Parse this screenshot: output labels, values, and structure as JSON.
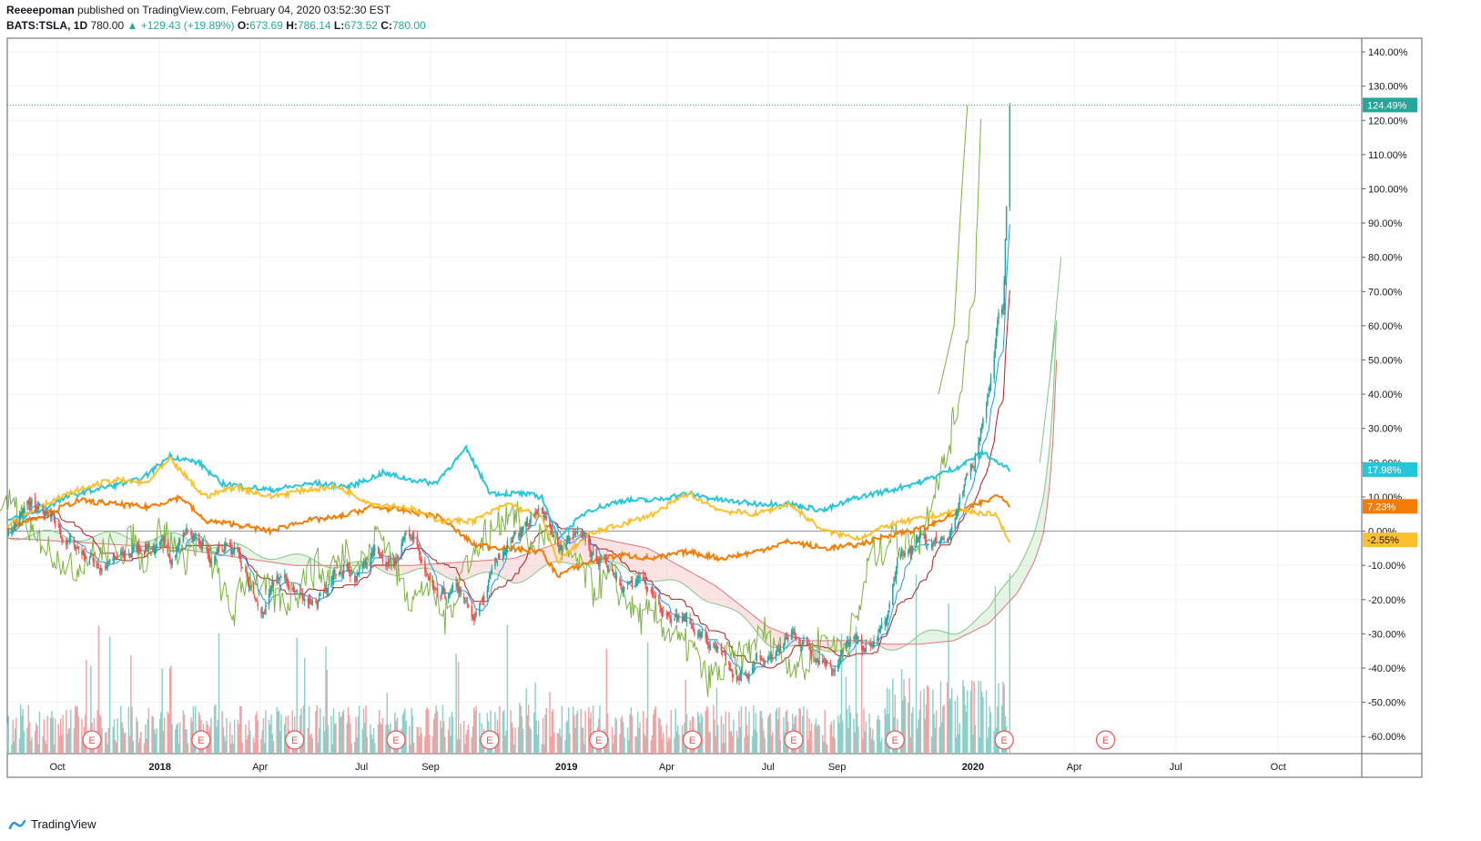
{
  "header": {
    "author": "Reeeepoman",
    "published_text": " published on TradingView.com, February 04, 2020 03:52:30 EST",
    "symbol": "BATS:TSLA, 1D",
    "last": "780.00",
    "change": "▲ +129.43 (+19.89%)",
    "open_label": "O:",
    "open": "673.69",
    "high_label": "H:",
    "high": "786.14",
    "low_label": "L:",
    "low": "673.52",
    "close_label": "C:",
    "close": "780.00"
  },
  "footer": {
    "brand": "TradingView"
  },
  "colors": {
    "up": "#26a69a",
    "down": "#ef5350",
    "cyan": "#26c6da",
    "orange": "#f57c00",
    "yellow": "#fbc02d",
    "conversion": "#2196f3",
    "base": "#b71c1c",
    "lagging": "#7cb342",
    "grid": "#eef2f6"
  },
  "chart_data": {
    "type": "line",
    "y_unit": "%",
    "ylim": [
      -65,
      144
    ],
    "y_ticks": [
      "140.00%",
      "130.00%",
      "120.00%",
      "110.00%",
      "100.00%",
      "90.00%",
      "80.00%",
      "70.00%",
      "60.00%",
      "50.00%",
      "40.00%",
      "30.00%",
      "20.00%",
      "10.00%",
      "0.00%",
      "-10.00%",
      "-20.00%",
      "-30.00%",
      "-40.00%",
      "-50.00%",
      "-60.00%"
    ],
    "y_tick_values": [
      140,
      130,
      120,
      110,
      100,
      90,
      80,
      70,
      60,
      50,
      40,
      30,
      20,
      10,
      0,
      -10,
      -20,
      -30,
      -40,
      -50,
      -60
    ],
    "x_ticks": [
      "Oct",
      "2018",
      "Apr",
      "Jul",
      "Sep",
      "2019",
      "Apr",
      "Jul",
      "Sep",
      "2020",
      "Apr",
      "Jul",
      "Oct"
    ],
    "x_tick_dates": [
      "2017-10-01",
      "2018-01-01",
      "2018-04-01",
      "2018-07-01",
      "2018-09-01",
      "2019-01-01",
      "2019-04-01",
      "2019-07-01",
      "2019-09-01",
      "2020-01-01",
      "2020-04-01",
      "2020-07-01",
      "2020-10-01"
    ],
    "x_range": [
      "2017-08-17",
      "2020-12-15"
    ],
    "earnings_marker_label": "E",
    "earnings_dates": [
      "2017-11-01",
      "2018-02-07",
      "2018-05-02",
      "2018-08-01",
      "2018-10-24",
      "2019-01-30",
      "2019-04-24",
      "2019-07-24",
      "2019-10-23",
      "2020-01-29",
      "2020-04-29"
    ],
    "price_labels": [
      {
        "text": "124.49%",
        "value": 124.49,
        "color": "#26a69a"
      },
      {
        "text": "17.98%",
        "value": 17.98,
        "color": "#26c6da"
      },
      {
        "text": "7.23%",
        "value": 7.23,
        "color": "#f57c00"
      },
      {
        "text": "-2.55%",
        "value": -2.55,
        "color": "#fbc02d"
      }
    ],
    "main_series": {
      "name": "TSLA",
      "anchors": [
        [
          "2017-08-17",
          0
        ],
        [
          "2017-09-08",
          8
        ],
        [
          "2017-09-20",
          4
        ],
        [
          "2017-10-05",
          -2
        ],
        [
          "2017-10-25",
          -6
        ],
        [
          "2017-11-10",
          -10
        ],
        [
          "2017-12-01",
          -8
        ],
        [
          "2017-12-20",
          -3
        ],
        [
          "2018-01-10",
          -7
        ],
        [
          "2018-01-26",
          1
        ],
        [
          "2018-02-15",
          -8
        ],
        [
          "2018-03-02",
          -3
        ],
        [
          "2018-03-20",
          -15
        ],
        [
          "2018-04-02",
          -25
        ],
        [
          "2018-04-18",
          -14
        ],
        [
          "2018-05-08",
          -19
        ],
        [
          "2018-05-30",
          -20
        ],
        [
          "2018-06-15",
          -7
        ],
        [
          "2018-06-26",
          -13
        ],
        [
          "2018-07-15",
          -5
        ],
        [
          "2018-07-30",
          -9
        ],
        [
          "2018-08-08",
          2
        ],
        [
          "2018-08-24",
          -10
        ],
        [
          "2018-09-07",
          -22
        ],
        [
          "2018-09-27",
          -18
        ],
        [
          "2018-10-10",
          -28
        ],
        [
          "2018-10-26",
          -12
        ],
        [
          "2018-11-08",
          -3
        ],
        [
          "2018-11-28",
          3
        ],
        [
          "2018-12-14",
          5
        ],
        [
          "2018-12-26",
          -5
        ],
        [
          "2019-01-10",
          -2
        ],
        [
          "2019-01-25",
          -8
        ],
        [
          "2019-02-08",
          -10
        ],
        [
          "2019-02-27",
          -15
        ],
        [
          "2019-03-15",
          -18
        ],
        [
          "2019-04-05",
          -22
        ],
        [
          "2019-04-26",
          -28
        ],
        [
          "2019-05-14",
          -35
        ],
        [
          "2019-06-04",
          -46
        ],
        [
          "2019-06-14",
          -40
        ],
        [
          "2019-07-01",
          -38
        ],
        [
          "2019-07-24",
          -30
        ],
        [
          "2019-08-09",
          -34
        ],
        [
          "2019-08-28",
          -38
        ],
        [
          "2019-09-13",
          -33
        ],
        [
          "2019-10-01",
          -35
        ],
        [
          "2019-10-15",
          -27
        ],
        [
          "2019-10-25",
          -10
        ],
        [
          "2019-11-12",
          -4
        ],
        [
          "2019-11-28",
          -3
        ],
        [
          "2019-12-10",
          0
        ],
        [
          "2019-12-23",
          10
        ],
        [
          "2020-01-02",
          20
        ],
        [
          "2020-01-10",
          35
        ],
        [
          "2020-01-17",
          45
        ],
        [
          "2020-01-23",
          60
        ],
        [
          "2020-01-28",
          65
        ],
        [
          "2020-01-30",
          85
        ],
        [
          "2020-02-03",
          124.49
        ]
      ]
    },
    "comparison_series": [
      {
        "name": "",
        "color": "#26c6da",
        "anchors": [
          [
            "2017-08-17",
            3
          ],
          [
            "2017-09-15",
            6
          ],
          [
            "2017-10-10",
            10
          ],
          [
            "2017-11-15",
            13
          ],
          [
            "2017-12-15",
            15
          ],
          [
            "2018-01-10",
            22
          ],
          [
            "2018-02-05",
            20
          ],
          [
            "2018-02-25",
            14
          ],
          [
            "2018-03-20",
            13
          ],
          [
            "2018-04-10",
            12
          ],
          [
            "2018-05-20",
            14
          ],
          [
            "2018-06-20",
            13
          ],
          [
            "2018-07-20",
            17
          ],
          [
            "2018-08-15",
            15
          ],
          [
            "2018-09-05",
            14
          ],
          [
            "2018-10-03",
            24
          ],
          [
            "2018-10-25",
            11
          ],
          [
            "2018-11-20",
            11
          ],
          [
            "2018-12-10",
            10
          ],
          [
            "2018-12-24",
            -2
          ],
          [
            "2019-01-20",
            6
          ],
          [
            "2019-02-20",
            9
          ],
          [
            "2019-03-20",
            9
          ],
          [
            "2019-04-20",
            11
          ],
          [
            "2019-05-20",
            9
          ],
          [
            "2019-06-20",
            8
          ],
          [
            "2019-07-20",
            8
          ],
          [
            "2019-08-20",
            6
          ],
          [
            "2019-09-20",
            10
          ],
          [
            "2019-10-20",
            12
          ],
          [
            "2019-11-20",
            15
          ],
          [
            "2019-12-20",
            19
          ],
          [
            "2020-01-10",
            23
          ],
          [
            "2020-01-28",
            19
          ],
          [
            "2020-02-03",
            17.98
          ]
        ]
      },
      {
        "name": "",
        "color": "#f57c00",
        "anchors": [
          [
            "2017-08-17",
            1
          ],
          [
            "2017-09-20",
            5
          ],
          [
            "2017-10-20",
            9
          ],
          [
            "2017-11-20",
            8
          ],
          [
            "2017-12-20",
            7
          ],
          [
            "2018-01-20",
            10
          ],
          [
            "2018-02-10",
            3
          ],
          [
            "2018-03-10",
            2
          ],
          [
            "2018-04-10",
            0
          ],
          [
            "2018-05-10",
            3
          ],
          [
            "2018-06-10",
            4
          ],
          [
            "2018-07-10",
            7
          ],
          [
            "2018-08-10",
            6
          ],
          [
            "2018-09-10",
            4
          ],
          [
            "2018-10-10",
            -4
          ],
          [
            "2018-11-10",
            -5
          ],
          [
            "2018-12-10",
            -6
          ],
          [
            "2018-12-24",
            -13
          ],
          [
            "2019-01-20",
            -9
          ],
          [
            "2019-02-20",
            -7
          ],
          [
            "2019-03-20",
            -8
          ],
          [
            "2019-04-20",
            -6
          ],
          [
            "2019-05-20",
            -8
          ],
          [
            "2019-06-20",
            -6
          ],
          [
            "2019-07-20",
            -3
          ],
          [
            "2019-08-20",
            -5
          ],
          [
            "2019-09-20",
            -4
          ],
          [
            "2019-10-20",
            -1
          ],
          [
            "2019-11-20",
            1
          ],
          [
            "2019-12-20",
            6
          ],
          [
            "2020-01-15",
            9
          ],
          [
            "2020-01-25",
            11
          ],
          [
            "2020-02-03",
            7.23
          ]
        ]
      },
      {
        "name": "",
        "color": "#fbc02d",
        "anchors": [
          [
            "2017-08-17",
            2
          ],
          [
            "2017-09-20",
            8
          ],
          [
            "2017-10-20",
            12
          ],
          [
            "2017-11-20",
            15
          ],
          [
            "2017-12-20",
            14
          ],
          [
            "2018-01-10",
            21
          ],
          [
            "2018-02-10",
            10
          ],
          [
            "2018-03-10",
            13
          ],
          [
            "2018-04-10",
            10
          ],
          [
            "2018-05-10",
            12
          ],
          [
            "2018-06-10",
            13
          ],
          [
            "2018-07-10",
            8
          ],
          [
            "2018-08-10",
            7
          ],
          [
            "2018-09-10",
            3
          ],
          [
            "2018-10-10",
            3
          ],
          [
            "2018-11-10",
            8
          ],
          [
            "2018-12-10",
            4
          ],
          [
            "2018-12-24",
            -9
          ],
          [
            "2019-01-20",
            -1
          ],
          [
            "2019-02-20",
            2
          ],
          [
            "2019-03-20",
            5
          ],
          [
            "2019-04-20",
            11
          ],
          [
            "2019-05-20",
            6
          ],
          [
            "2019-06-20",
            5
          ],
          [
            "2019-07-20",
            8
          ],
          [
            "2019-08-20",
            0
          ],
          [
            "2019-09-20",
            -2
          ],
          [
            "2019-10-20",
            2
          ],
          [
            "2019-11-20",
            4
          ],
          [
            "2019-12-20",
            6
          ],
          [
            "2020-01-20",
            5
          ],
          [
            "2020-02-03",
            -2.55
          ]
        ]
      }
    ],
    "ichimoku": {
      "conversion_color": "#2196f3",
      "base_color": "#b71c1c",
      "lagging_color": "#7cb342",
      "span_a_color": "#a5d6a7",
      "span_b_color": "#ef9a9a",
      "span_a": [
        [
          "2017-08-17",
          -1
        ],
        [
          "2018-01-15",
          -2
        ],
        [
          "2018-05-01",
          -8
        ],
        [
          "2018-08-15",
          -12
        ],
        [
          "2018-11-15",
          -14
        ],
        [
          "2019-01-15",
          -8
        ],
        [
          "2019-03-15",
          -13
        ],
        [
          "2019-05-15",
          -20
        ],
        [
          "2019-07-01",
          -32
        ],
        [
          "2019-08-01",
          -35
        ],
        [
          "2019-09-15",
          -33
        ],
        [
          "2019-10-15",
          -34
        ],
        [
          "2019-11-15",
          -31
        ],
        [
          "2019-12-15",
          -29
        ],
        [
          "2020-01-15",
          -24
        ],
        [
          "2020-02-10",
          -10
        ],
        [
          "2020-02-25",
          0
        ],
        [
          "2020-03-05",
          10
        ],
        [
          "2020-03-12",
          30
        ],
        [
          "2020-03-16",
          60
        ]
      ],
      "span_b": [
        [
          "2017-08-17",
          -2
        ],
        [
          "2018-01-15",
          -5
        ],
        [
          "2018-05-01",
          -10
        ],
        [
          "2018-08-15",
          -10
        ],
        [
          "2018-11-15",
          -8
        ],
        [
          "2019-01-15",
          -1
        ],
        [
          "2019-03-15",
          -5
        ],
        [
          "2019-05-15",
          -16
        ],
        [
          "2019-07-01",
          -28
        ],
        [
          "2019-08-01",
          -32
        ],
        [
          "2019-09-15",
          -32
        ],
        [
          "2019-10-15",
          -33
        ],
        [
          "2019-11-15",
          -33
        ],
        [
          "2019-12-15",
          -32
        ],
        [
          "2020-01-15",
          -27
        ],
        [
          "2020-02-10",
          -18
        ],
        [
          "2020-02-25",
          -9
        ],
        [
          "2020-03-05",
          0
        ],
        [
          "2020-03-12",
          20
        ],
        [
          "2020-03-16",
          50
        ]
      ],
      "lagging_offset_days": -26,
      "lagging_extra": [
        [
          "2019-12-01",
          40
        ],
        [
          "2019-12-15",
          60
        ],
        [
          "2019-12-22",
          100
        ],
        [
          "2019-12-27",
          124.49
        ]
      ],
      "leading_extra": [
        [
          "2020-03-01",
          20
        ],
        [
          "2020-03-10",
          45
        ],
        [
          "2020-03-20",
          80
        ]
      ]
    },
    "volume_max_pct_of_panel": 1.0
  }
}
